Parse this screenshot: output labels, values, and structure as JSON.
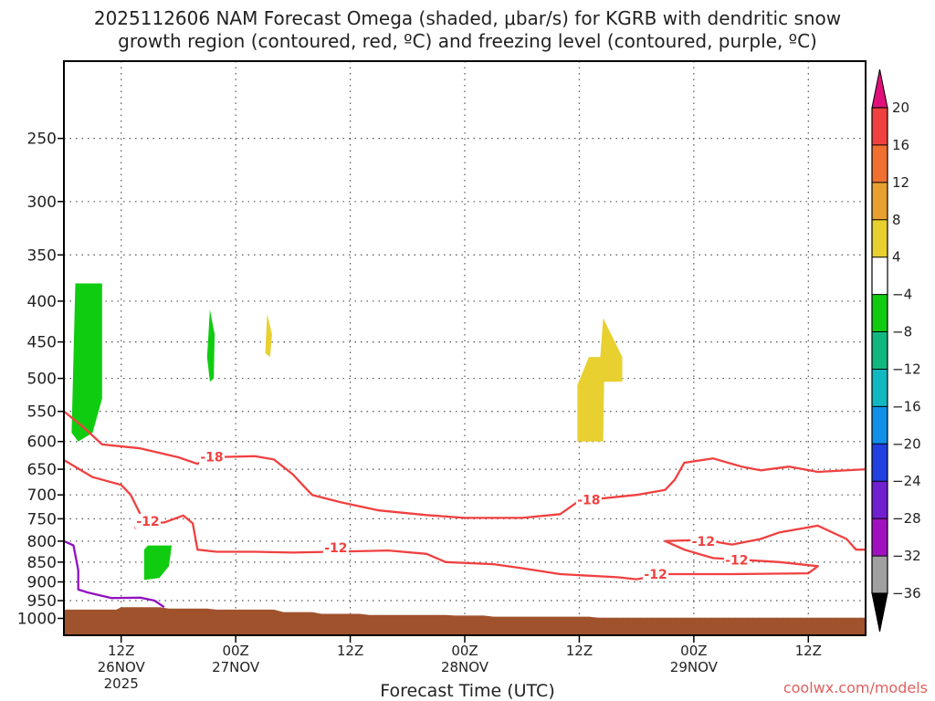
{
  "title_line1": "2025112606 NAM Forecast Omega (shaded, μbar/s) for KGRB with dendritic snow",
  "title_line2": "growth region (contoured, red, ºC) and freezing level (contoured, purple, ºC)",
  "xlabel": "Forecast Time (UTC)",
  "credit": "coolwx.com/models",
  "chart_data": {
    "type": "contour",
    "title": "2025112606 NAM Forecast Omega (shaded, μbar/s) for KGRB with dendritic snow growth region (contoured, red, ºC) and freezing level (contoured, purple, ºC)",
    "xlabel": "Forecast Time (UTC)",
    "ylabel": "",
    "x_unit": "forecast hour from 2025-11-26 06Z",
    "xlim": [
      0,
      84
    ],
    "ylim": [
      1050,
      200
    ],
    "yscale": "log",
    "grid": true,
    "x_ticks": [
      {
        "x": 6,
        "label": "12Z",
        "sub": "26NOV",
        "sub2": "2025"
      },
      {
        "x": 18,
        "label": "00Z",
        "sub": "27NOV",
        "sub2": ""
      },
      {
        "x": 30,
        "label": "12Z",
        "sub": "",
        "sub2": ""
      },
      {
        "x": 42,
        "label": "00Z",
        "sub": "28NOV",
        "sub2": ""
      },
      {
        "x": 54,
        "label": "12Z",
        "sub": "",
        "sub2": ""
      },
      {
        "x": 66,
        "label": "00Z",
        "sub": "29NOV",
        "sub2": ""
      },
      {
        "x": 78,
        "label": "12Z",
        "sub": "",
        "sub2": ""
      }
    ],
    "y_ticks": [
      250,
      300,
      350,
      400,
      450,
      500,
      550,
      600,
      650,
      700,
      750,
      800,
      850,
      900,
      950,
      1000
    ],
    "colorbar": {
      "levels": [
        20,
        16,
        12,
        8,
        4,
        -4,
        -8,
        -12,
        -16,
        -20,
        -24,
        -28,
        -32,
        -36
      ],
      "colors": [
        "#f04040",
        "#f07030",
        "#e8a030",
        "#e8d030",
        "#ffffff",
        "#10cc10",
        "#10b880",
        "#10b8c0",
        "#1090e8",
        "#2040e0",
        "#7020d0",
        "#a010c0",
        "#a0a0a0"
      ],
      "over_color": "#e0107a",
      "under_color": "#000000"
    },
    "omega_shaded": [
      {
        "value_range": [
          -8,
          -4
        ],
        "color": "#10cc10",
        "points": [
          [
            0.8,
            585
          ],
          [
            1.2,
            380
          ],
          [
            4.0,
            380
          ],
          [
            4.0,
            530
          ],
          [
            3.0,
            585
          ],
          [
            1.5,
            600
          ]
        ]
      },
      {
        "value_range": [
          -8,
          -4
        ],
        "color": "#10cc10",
        "points": [
          [
            15.3,
            410
          ],
          [
            15.8,
            440
          ],
          [
            15.7,
            500
          ],
          [
            15.3,
            505
          ],
          [
            15.0,
            470
          ]
        ]
      },
      {
        "value_range": [
          -8,
          -4
        ],
        "color": "#10cc10",
        "points": [
          [
            8.4,
            820
          ],
          [
            8.8,
            810
          ],
          [
            11.3,
            810
          ],
          [
            11.0,
            860
          ],
          [
            10.0,
            890
          ],
          [
            8.4,
            895
          ]
        ]
      },
      {
        "value_range": [
          4,
          8
        ],
        "color": "#e8d030",
        "points": [
          [
            21.3,
            415
          ],
          [
            21.8,
            440
          ],
          [
            21.6,
            470
          ],
          [
            21.1,
            465
          ]
        ]
      },
      {
        "value_range": [
          4,
          8
        ],
        "color": "#e8d030",
        "points": [
          [
            53.8,
            600
          ],
          [
            53.8,
            510
          ],
          [
            55.0,
            470
          ],
          [
            56.2,
            470
          ],
          [
            56.5,
            420
          ],
          [
            58.5,
            470
          ],
          [
            58.5,
            505
          ],
          [
            56.6,
            505
          ],
          [
            56.5,
            600
          ]
        ]
      }
    ],
    "contours": [
      {
        "name": "-18",
        "color": "#f04040",
        "label_points": [
          [
            15.5,
            627
          ],
          [
            55.0,
            710
          ]
        ],
        "points": [
          [
            0,
            550
          ],
          [
            2,
            575
          ],
          [
            4,
            605
          ],
          [
            8,
            612
          ],
          [
            12,
            628
          ],
          [
            14,
            640
          ],
          [
            15,
            628
          ],
          [
            20,
            626
          ],
          [
            22,
            632
          ],
          [
            24,
            660
          ],
          [
            25,
            680
          ],
          [
            26,
            700
          ],
          [
            29,
            715
          ],
          [
            33,
            732
          ],
          [
            38,
            742
          ],
          [
            42,
            748
          ],
          [
            48,
            748
          ],
          [
            52,
            740
          ],
          [
            54,
            712
          ],
          [
            60,
            700
          ],
          [
            63,
            690
          ],
          [
            64,
            670
          ],
          [
            65,
            638
          ],
          [
            68,
            630
          ],
          [
            71,
            645
          ],
          [
            73,
            652
          ],
          [
            76,
            645
          ],
          [
            79,
            655
          ],
          [
            84,
            650
          ]
        ]
      },
      {
        "name": "-12",
        "color": "#f04040",
        "label_points": [
          [
            8.8,
            755
          ],
          [
            28.5,
            815
          ],
          [
            67.0,
            800
          ],
          [
            70.5,
            845
          ],
          [
            62.0,
            880
          ]
        ],
        "points": [
          [
            0,
            633
          ],
          [
            3,
            665
          ],
          [
            6,
            680
          ],
          [
            7,
            700
          ],
          [
            8,
            740
          ],
          [
            7.5,
            770
          ],
          [
            8.5,
            760
          ],
          [
            10.5,
            758
          ],
          [
            12.5,
            743
          ],
          [
            13.5,
            760
          ],
          [
            14.0,
            820
          ],
          [
            16,
            825
          ],
          [
            20,
            825
          ],
          [
            24,
            827
          ],
          [
            28,
            825
          ],
          [
            34,
            822
          ],
          [
            38,
            830
          ],
          [
            40,
            850
          ],
          [
            45,
            855
          ],
          [
            48,
            865
          ],
          [
            52,
            880
          ],
          [
            58,
            888
          ],
          [
            60,
            893
          ],
          [
            63,
            880
          ],
          [
            70,
            880
          ],
          [
            78,
            878
          ],
          [
            79,
            860
          ],
          [
            75,
            850
          ],
          [
            68,
            840
          ],
          [
            65,
            820
          ],
          [
            63,
            800
          ],
          [
            67,
            797
          ],
          [
            70,
            808
          ],
          [
            73,
            795
          ],
          [
            75,
            780
          ],
          [
            79,
            765
          ],
          [
            82,
            795
          ],
          [
            83,
            820
          ],
          [
            84,
            820
          ]
        ]
      }
    ],
    "freezing_level": {
      "name": "0",
      "color": "#9010c0",
      "points": [
        [
          0,
          800
        ],
        [
          1.0,
          810
        ],
        [
          1.5,
          870
        ],
        [
          1.5,
          920
        ],
        [
          2.5,
          928
        ],
        [
          5.0,
          943
        ],
        [
          8.0,
          942
        ],
        [
          9.5,
          950
        ],
        [
          10.5,
          968
        ]
      ]
    },
    "terrain": {
      "color": "#a0522d",
      "top_points": [
        [
          0,
          975
        ],
        [
          5.5,
          975
        ],
        [
          6,
          968
        ],
        [
          10,
          968
        ],
        [
          11,
          972
        ],
        [
          15,
          972
        ],
        [
          16,
          975
        ],
        [
          22,
          975
        ],
        [
          23,
          982
        ],
        [
          26,
          982
        ],
        [
          27,
          987
        ],
        [
          31,
          987
        ],
        [
          32,
          990
        ],
        [
          40,
          990
        ],
        [
          41,
          992
        ],
        [
          44,
          992
        ],
        [
          45,
          995
        ],
        [
          55,
          995
        ],
        [
          56,
          998
        ],
        [
          84,
          998
        ]
      ]
    }
  }
}
